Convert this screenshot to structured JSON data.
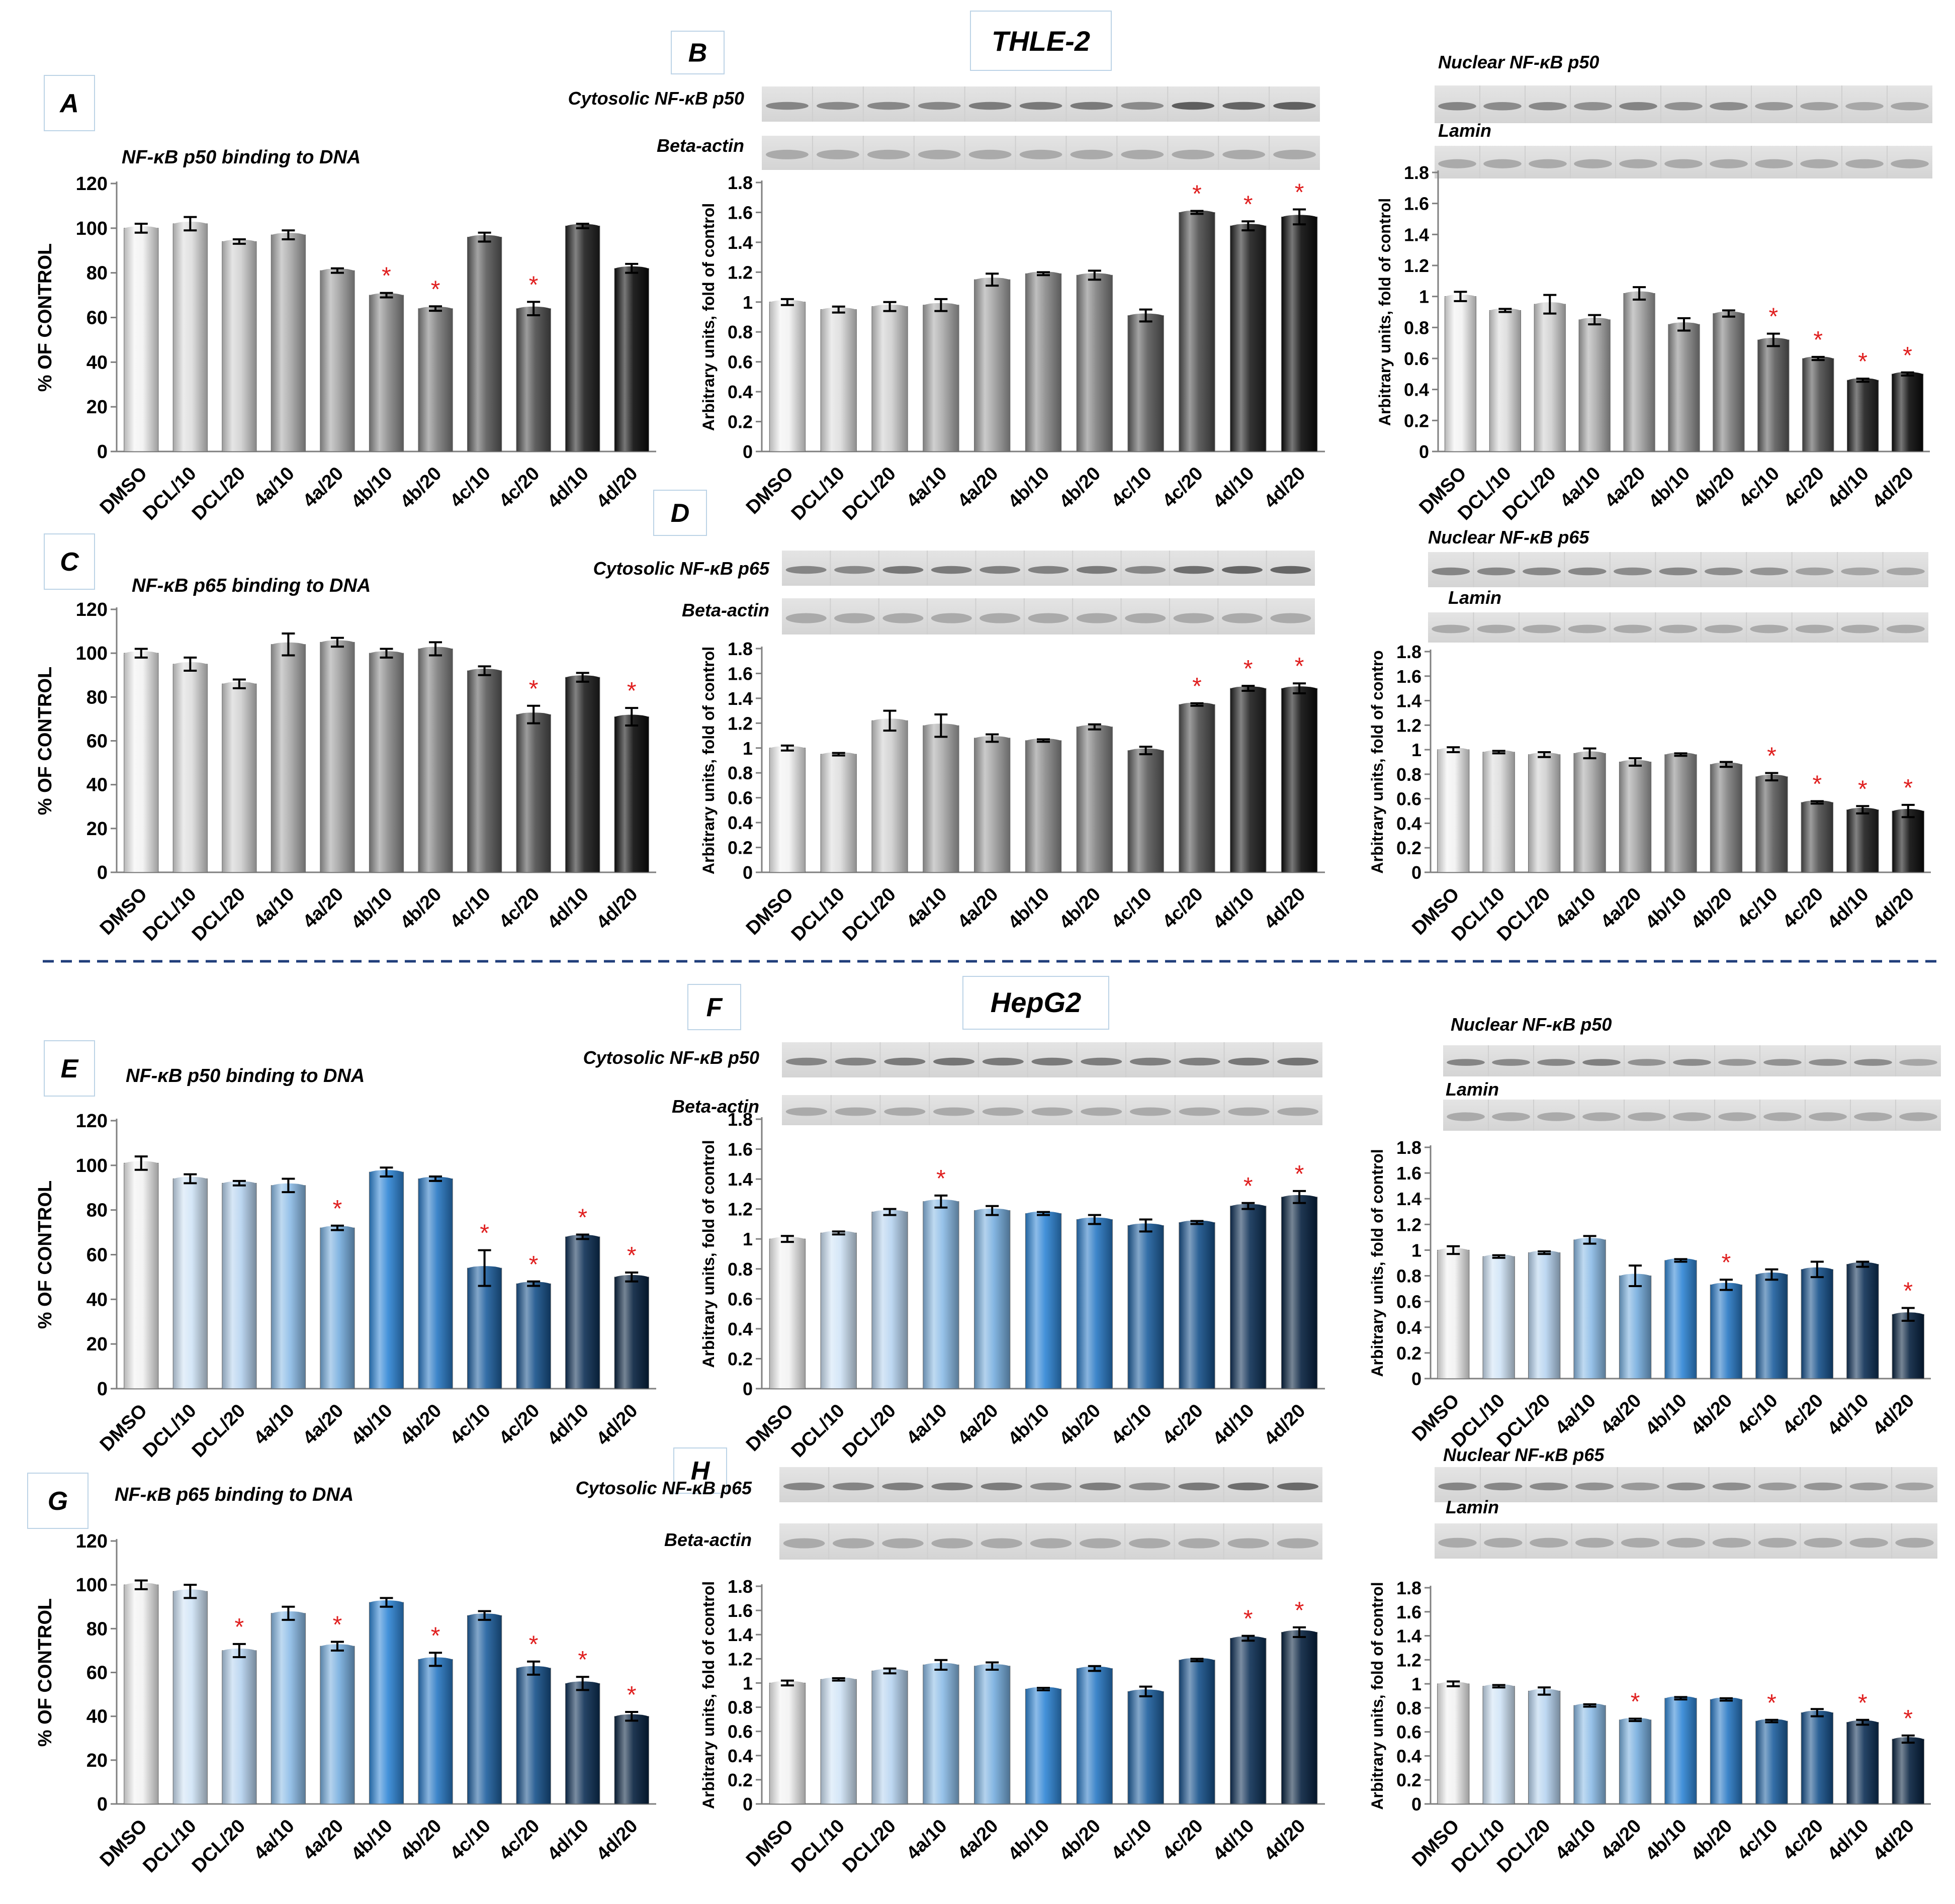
{
  "figure": {
    "sections": {
      "thle2": {
        "title": "THLE-2"
      },
      "hepg2": {
        "title": "HepG2"
      }
    },
    "colors": {
      "thle2_scheme": "gray",
      "hepg2_scheme": "blue",
      "significance_marker": "#e02020",
      "divider": "#1f3d7a"
    }
  },
  "chart_data": [
    {
      "id": "A",
      "panel_letter": "A",
      "type": "bar",
      "title": "NF-κB p50 binding to DNA",
      "ylabel": "% OF CONTROL",
      "ylim": [
        0,
        120
      ],
      "yticks": [
        0,
        20,
        40,
        60,
        80,
        100,
        120
      ],
      "color_scheme": "gray",
      "categories": [
        "DMSO",
        "DCL/10",
        "DCL/20",
        "4a/10",
        "4a/20",
        "4b/10",
        "4b/20",
        "4c/10",
        "4c/20",
        "4d/10",
        "4d/20"
      ],
      "values": [
        100,
        102,
        94,
        97,
        81,
        70,
        64,
        96,
        64,
        101,
        82
      ],
      "errors": [
        2,
        3,
        1,
        2,
        1,
        1,
        1,
        2,
        3,
        1,
        2
      ],
      "significant": [
        false,
        false,
        false,
        false,
        false,
        true,
        true,
        false,
        true,
        false,
        false
      ]
    },
    {
      "id": "B1",
      "panel_letter": "B",
      "type": "bar",
      "title": "",
      "ylabel": "Arbitrary units, fold of control",
      "ylim": [
        0,
        1.8
      ],
      "yticks": [
        0,
        0.2,
        0.4,
        0.6,
        0.8,
        1,
        1.2,
        1.4,
        1.6,
        1.8
      ],
      "color_scheme": "gray",
      "blots": [
        "Cytosolic NF-κB p50",
        "Beta-actin"
      ],
      "categories": [
        "DMSO",
        "DCL/10",
        "DCL/20",
        "4a/10",
        "4a/20",
        "4b/10",
        "4b/20",
        "4c/10",
        "4c/20",
        "4d/10",
        "4d/20"
      ],
      "values": [
        1.0,
        0.95,
        0.97,
        0.98,
        1.15,
        1.19,
        1.18,
        0.91,
        1.6,
        1.51,
        1.57
      ],
      "errors": [
        0.02,
        0.02,
        0.03,
        0.04,
        0.04,
        0.01,
        0.03,
        0.04,
        0.01,
        0.03,
        0.05
      ],
      "significant": [
        false,
        false,
        false,
        false,
        false,
        false,
        false,
        false,
        true,
        true,
        true
      ]
    },
    {
      "id": "B2",
      "panel_letter": "",
      "type": "bar",
      "title": "",
      "ylabel": "Arbitrary units, fold of control",
      "ylim": [
        0,
        1.8
      ],
      "yticks": [
        0,
        0.2,
        0.4,
        0.6,
        0.8,
        1,
        1.2,
        1.4,
        1.6,
        1.8
      ],
      "color_scheme": "gray",
      "blots": [
        "Nuclear NF-κB p50",
        "Lamin"
      ],
      "categories": [
        "DMSO",
        "DCL/10",
        "DCL/20",
        "4a/10",
        "4a/20",
        "4b/10",
        "4b/20",
        "4c/10",
        "4c/20",
        "4d/10",
        "4d/20"
      ],
      "values": [
        1.0,
        0.91,
        0.95,
        0.85,
        1.02,
        0.82,
        0.89,
        0.72,
        0.6,
        0.46,
        0.5
      ],
      "errors": [
        0.03,
        0.01,
        0.06,
        0.03,
        0.04,
        0.04,
        0.02,
        0.04,
        0.01,
        0.01,
        0.01
      ],
      "significant": [
        false,
        false,
        false,
        false,
        false,
        false,
        false,
        true,
        true,
        true,
        true
      ]
    },
    {
      "id": "C",
      "panel_letter": "C",
      "type": "bar",
      "title": "NF-κB p65 binding to DNA",
      "ylabel": "% OF CONTROL",
      "ylim": [
        0,
        120
      ],
      "yticks": [
        0,
        20,
        40,
        60,
        80,
        100,
        120
      ],
      "color_scheme": "gray",
      "categories": [
        "DMSO",
        "DCL/10",
        "DCL/20",
        "4a/10",
        "4a/20",
        "4b/10",
        "4b/20",
        "4c/10",
        "4c/20",
        "4d/10",
        "4d/20"
      ],
      "values": [
        100,
        95,
        86,
        104,
        105,
        100,
        102,
        92,
        72,
        89,
        71
      ],
      "errors": [
        2,
        3,
        2,
        5,
        2,
        2,
        3,
        2,
        4,
        2,
        4
      ],
      "significant": [
        false,
        false,
        false,
        false,
        false,
        false,
        false,
        false,
        true,
        false,
        true
      ]
    },
    {
      "id": "D1",
      "panel_letter": "D",
      "type": "bar",
      "title": "",
      "ylabel": "Arbitrary units, fold of control",
      "ylim": [
        0,
        1.8
      ],
      "yticks": [
        0,
        0.2,
        0.4,
        0.6,
        0.8,
        1,
        1.2,
        1.4,
        1.6,
        1.8
      ],
      "color_scheme": "gray",
      "blots": [
        "Cytosolic NF-κB p65",
        "Beta-actin"
      ],
      "categories": [
        "DMSO",
        "DCL/10",
        "DCL/20",
        "4a/10",
        "4a/20",
        "4b/10",
        "4b/20",
        "4c/10",
        "4c/20",
        "4d/10",
        "4d/20"
      ],
      "values": [
        1.0,
        0.95,
        1.22,
        1.18,
        1.08,
        1.06,
        1.17,
        0.98,
        1.35,
        1.48,
        1.48
      ],
      "errors": [
        0.02,
        0.01,
        0.08,
        0.09,
        0.03,
        0.01,
        0.02,
        0.03,
        0.01,
        0.02,
        0.04
      ],
      "significant": [
        false,
        false,
        false,
        false,
        false,
        false,
        false,
        false,
        true,
        true,
        true
      ]
    },
    {
      "id": "D2",
      "panel_letter": "",
      "type": "bar",
      "title": "",
      "ylabel": "Arbitrary units, fold of contro",
      "ylim": [
        0,
        1.8
      ],
      "yticks": [
        0,
        0.2,
        0.4,
        0.6,
        0.8,
        1,
        1.2,
        1.4,
        1.6,
        1.8
      ],
      "color_scheme": "gray",
      "blots": [
        "Nuclear  NF-κB p65",
        "Lamin"
      ],
      "categories": [
        "DMSO",
        "DCL/10",
        "DCL/20",
        "4a/10",
        "4a/20",
        "4b/10",
        "4b/20",
        "4c/10",
        "4c/20",
        "4d/10",
        "4d/20"
      ],
      "values": [
        1.0,
        0.98,
        0.96,
        0.97,
        0.9,
        0.96,
        0.88,
        0.78,
        0.57,
        0.51,
        0.5
      ],
      "errors": [
        0.02,
        0.01,
        0.02,
        0.04,
        0.03,
        0.01,
        0.02,
        0.03,
        0.01,
        0.03,
        0.05
      ],
      "significant": [
        false,
        false,
        false,
        false,
        false,
        false,
        false,
        true,
        true,
        true,
        true
      ]
    },
    {
      "id": "E",
      "panel_letter": "E",
      "type": "bar",
      "title": "NF-κB p50 binding to DNA",
      "ylabel": "% OF CONTROL",
      "ylim": [
        0,
        120
      ],
      "yticks": [
        0,
        20,
        40,
        60,
        80,
        100,
        120
      ],
      "color_scheme": "blue",
      "categories": [
        "DMSO",
        "DCL/10",
        "DCL/20",
        "4a/10",
        "4a/20",
        "4b/10",
        "4b/20",
        "4c/10",
        "4c/20",
        "4d/10",
        "4d/20"
      ],
      "values": [
        101,
        94,
        92,
        91,
        72,
        97,
        94,
        54,
        47,
        68,
        50
      ],
      "errors": [
        3,
        2,
        1,
        3,
        1,
        2,
        1,
        8,
        1,
        1,
        2
      ],
      "significant": [
        false,
        false,
        false,
        false,
        true,
        false,
        false,
        true,
        true,
        true,
        true
      ]
    },
    {
      "id": "F1",
      "panel_letter": "F",
      "type": "bar",
      "title": "",
      "ylabel": "Arbitrary units, fold of control",
      "ylim": [
        0,
        1.8
      ],
      "yticks": [
        0,
        0.2,
        0.4,
        0.6,
        0.8,
        1,
        1.2,
        1.4,
        1.6,
        1.8
      ],
      "color_scheme": "blue",
      "blots": [
        "Cytosolic NF-κB p50",
        "Beta-actin"
      ],
      "categories": [
        "DMSO",
        "DCL/10",
        "DCL/20",
        "4a/10",
        "4a/20",
        "4b/10",
        "4b/20",
        "4c/10",
        "4c/20",
        "4d/10",
        "4d/20"
      ],
      "values": [
        1.0,
        1.04,
        1.18,
        1.25,
        1.19,
        1.17,
        1.13,
        1.09,
        1.11,
        1.22,
        1.28
      ],
      "errors": [
        0.02,
        0.01,
        0.02,
        0.04,
        0.03,
        0.01,
        0.03,
        0.04,
        0.01,
        0.02,
        0.04
      ],
      "significant": [
        false,
        false,
        false,
        true,
        false,
        false,
        false,
        false,
        false,
        true,
        true
      ]
    },
    {
      "id": "F2",
      "panel_letter": "",
      "type": "bar",
      "title": "",
      "ylabel": "Arbitrary units, fold of control",
      "ylim": [
        0,
        1.8
      ],
      "yticks": [
        0,
        0.2,
        0.4,
        0.6,
        0.8,
        1,
        1.2,
        1.4,
        1.6,
        1.8
      ],
      "color_scheme": "blue",
      "blots": [
        "Nuclear NF-κB p50",
        "Lamin"
      ],
      "categories": [
        "DMSO",
        "DCL/10",
        "DCL/20",
        "4a/10",
        "4a/20",
        "4b/10",
        "4b/20",
        "4c/10",
        "4c/20",
        "4d/10",
        "4d/20"
      ],
      "values": [
        1.0,
        0.95,
        0.98,
        1.08,
        0.8,
        0.92,
        0.73,
        0.81,
        0.85,
        0.89,
        0.5
      ],
      "errors": [
        0.03,
        0.01,
        0.01,
        0.03,
        0.08,
        0.01,
        0.04,
        0.04,
        0.06,
        0.02,
        0.05
      ],
      "significant": [
        false,
        false,
        false,
        false,
        false,
        false,
        true,
        false,
        false,
        false,
        true
      ]
    },
    {
      "id": "G",
      "panel_letter": "G",
      "type": "bar",
      "title": "NF-κB p65 binding to DNA",
      "ylabel": "% OF CONTROL",
      "ylim": [
        0,
        120
      ],
      "yticks": [
        0,
        20,
        40,
        60,
        80,
        100,
        120
      ],
      "color_scheme": "blue",
      "categories": [
        "DMSO",
        "DCL/10",
        "DCL/20",
        "4a/10",
        "4a/20",
        "4b/10",
        "4b/20",
        "4c/10",
        "4c/20",
        "4d/10",
        "4d/20"
      ],
      "values": [
        100,
        97,
        70,
        87,
        72,
        92,
        66,
        86,
        62,
        55,
        40
      ],
      "errors": [
        2,
        3,
        3,
        3,
        2,
        2,
        3,
        2,
        3,
        3,
        2
      ],
      "significant": [
        false,
        false,
        true,
        false,
        true,
        false,
        true,
        false,
        true,
        true,
        true
      ]
    },
    {
      "id": "H1",
      "panel_letter": "H",
      "type": "bar",
      "title": "",
      "ylabel": "Arbitrary units, fold of control",
      "ylim": [
        0,
        1.8
      ],
      "yticks": [
        0,
        0.2,
        0.4,
        0.6,
        0.8,
        1,
        1.2,
        1.4,
        1.6,
        1.8
      ],
      "color_scheme": "blue",
      "blots": [
        "Cytosolic NF-κB p65",
        "Beta-actin"
      ],
      "categories": [
        "DMSO",
        "DCL/10",
        "DCL/20",
        "4a/10",
        "4a/20",
        "4b/10",
        "4b/20",
        "4c/10",
        "4c/20",
        "4d/10",
        "4d/20"
      ],
      "values": [
        1.0,
        1.03,
        1.1,
        1.15,
        1.14,
        0.95,
        1.12,
        0.93,
        1.19,
        1.37,
        1.42
      ],
      "errors": [
        0.02,
        0.01,
        0.02,
        0.04,
        0.03,
        0.01,
        0.02,
        0.04,
        0.01,
        0.02,
        0.04
      ],
      "significant": [
        false,
        false,
        false,
        false,
        false,
        false,
        false,
        false,
        false,
        true,
        true
      ]
    },
    {
      "id": "H2",
      "panel_letter": "",
      "type": "bar",
      "title": "",
      "ylabel": "Arbitrary units, fold of control",
      "ylim": [
        0,
        1.8
      ],
      "yticks": [
        0,
        0.2,
        0.4,
        0.6,
        0.8,
        1,
        1.2,
        1.4,
        1.6,
        1.8
      ],
      "color_scheme": "blue",
      "blots": [
        "Nuclear  NF-κB p65",
        "Lamin"
      ],
      "categories": [
        "DMSO",
        "DCL/10",
        "DCL/20",
        "4a/10",
        "4a/20",
        "4b/10",
        "4b/20",
        "4c/10",
        "4c/20",
        "4d/10",
        "4d/20"
      ],
      "values": [
        1.0,
        0.98,
        0.94,
        0.82,
        0.7,
        0.88,
        0.87,
        0.69,
        0.76,
        0.68,
        0.54
      ],
      "errors": [
        0.02,
        0.01,
        0.03,
        0.01,
        0.01,
        0.01,
        0.01,
        0.01,
        0.03,
        0.02,
        0.03
      ],
      "significant": [
        false,
        false,
        false,
        false,
        true,
        false,
        false,
        true,
        false,
        true,
        true
      ]
    }
  ]
}
